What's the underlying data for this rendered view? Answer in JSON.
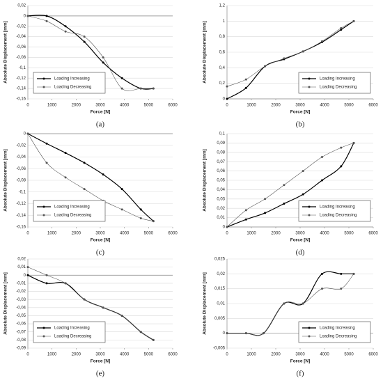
{
  "chart_data": [
    {
      "type": "line",
      "panel_label": "(a)",
      "x_label": "Force [N]",
      "y_label": "Absolute Displacement [mm]",
      "x": [
        0,
        780,
        1560,
        2340,
        3120,
        3900,
        4680,
        5200
      ],
      "series": [
        {
          "name": "Loading Increasing",
          "color": "#000000",
          "values": [
            0,
            0,
            -0.02,
            -0.05,
            -0.09,
            -0.12,
            -0.14,
            -0.14
          ]
        },
        {
          "name": "Loading Decreasing",
          "color": "#555555",
          "values": [
            0,
            -0.01,
            -0.03,
            -0.04,
            -0.08,
            -0.14,
            -0.14,
            -0.14
          ]
        }
      ],
      "xlim": [
        0,
        6000
      ],
      "xticks": [
        0,
        1000,
        2000,
        3000,
        4000,
        5000,
        6000
      ],
      "ylim": [
        -0.16,
        0.02
      ],
      "yticks": [
        {
          "value": 0.02,
          "label": "0,02"
        },
        0,
        {
          "value": -0.02,
          "label": "-0,02"
        },
        {
          "value": -0.04,
          "label": "-0,04"
        },
        {
          "value": -0.06,
          "label": "-0,06"
        },
        {
          "value": -0.08,
          "label": "-0,08"
        },
        {
          "value": -0.1,
          "label": "-0,1"
        },
        {
          "value": -0.12,
          "label": "-0,12"
        },
        {
          "value": -0.14,
          "label": "-0,14"
        },
        {
          "value": -0.16,
          "label": "-0,16"
        }
      ],
      "grid": true,
      "legend": "lower left"
    },
    {
      "type": "line",
      "panel_label": "(b)",
      "x_label": "Force [N]",
      "y_label": "Absolute Displacement [mm]",
      "x": [
        0,
        780,
        1560,
        2340,
        3120,
        3900,
        4680,
        5200
      ],
      "series": [
        {
          "name": "Loading Increasing",
          "color": "#000000",
          "values": [
            0,
            0.14,
            0.42,
            0.51,
            0.61,
            0.73,
            0.89,
            1.0
          ]
        },
        {
          "name": "Loading Decreasing",
          "color": "#555555",
          "values": [
            0.16,
            0.25,
            0.42,
            0.52,
            0.61,
            0.74,
            0.91,
            1.0
          ]
        }
      ],
      "xlim": [
        0,
        6000
      ],
      "xticks": [
        0,
        1000,
        2000,
        3000,
        4000,
        5000,
        6000
      ],
      "ylim": [
        0,
        1.2
      ],
      "yticks": [
        0,
        {
          "value": 0.2,
          "label": "0,2"
        },
        {
          "value": 0.4,
          "label": "0,4"
        },
        {
          "value": 0.6,
          "label": "0,6"
        },
        {
          "value": 0.8,
          "label": "0,8"
        },
        1,
        {
          "value": 1.2,
          "label": "1,2"
        }
      ],
      "grid": true,
      "legend": "lower right"
    },
    {
      "type": "line",
      "panel_label": "(c)",
      "x_label": "Force [N]",
      "y_label": "Absolute Displacement [mm]",
      "x": [
        0,
        780,
        1560,
        2340,
        3120,
        3900,
        4680,
        5200
      ],
      "series": [
        {
          "name": "Loading Increasing",
          "color": "#000000",
          "values": [
            0,
            -0.017,
            -0.033,
            -0.05,
            -0.07,
            -0.095,
            -0.13,
            -0.15
          ]
        },
        {
          "name": "Loading Decreasing",
          "color": "#555555",
          "values": [
            0,
            -0.05,
            -0.075,
            -0.095,
            -0.115,
            -0.13,
            -0.145,
            -0.15
          ]
        }
      ],
      "xlim": [
        0,
        6000
      ],
      "xticks": [
        0,
        1000,
        2000,
        3000,
        4000,
        5000,
        6000
      ],
      "ylim": [
        -0.16,
        0
      ],
      "yticks": [
        0,
        {
          "value": -0.02,
          "label": "-0,02"
        },
        {
          "value": -0.04,
          "label": "-0,04"
        },
        {
          "value": -0.06,
          "label": "-0,06"
        },
        {
          "value": -0.08,
          "label": "-0,08"
        },
        {
          "value": -0.1,
          "label": "-0,1"
        },
        {
          "value": -0.12,
          "label": "-0,12"
        },
        {
          "value": -0.14,
          "label": "-0,14"
        },
        {
          "value": -0.16,
          "label": "-0,16"
        }
      ],
      "grid": true,
      "legend": "lower left"
    },
    {
      "type": "line",
      "panel_label": "(d)",
      "x_label": "Force [N]",
      "y_label": "Absolute Displacement [mm]",
      "x": [
        0,
        780,
        1560,
        2340,
        3120,
        3900,
        4680,
        5200
      ],
      "series": [
        {
          "name": "Loading Increasing",
          "color": "#000000",
          "values": [
            0,
            0.008,
            0.015,
            0.025,
            0.035,
            0.05,
            0.065,
            0.09
          ]
        },
        {
          "name": "Loading Decreasing",
          "color": "#555555",
          "values": [
            0,
            0.018,
            0.03,
            0.045,
            0.06,
            0.075,
            0.085,
            0.09
          ]
        }
      ],
      "xlim": [
        0,
        6000
      ],
      "xticks": [
        0,
        1000,
        2000,
        3000,
        4000,
        5000,
        6000
      ],
      "ylim": [
        0,
        0.1
      ],
      "yticks": [
        0,
        {
          "value": 0.01,
          "label": "0,01"
        },
        {
          "value": 0.02,
          "label": "0,02"
        },
        {
          "value": 0.03,
          "label": "0,03"
        },
        {
          "value": 0.04,
          "label": "0,04"
        },
        {
          "value": 0.05,
          "label": "0,05"
        },
        {
          "value": 0.06,
          "label": "0,06"
        },
        {
          "value": 0.07,
          "label": "0,07"
        },
        {
          "value": 0.08,
          "label": "0,08"
        },
        {
          "value": 0.09,
          "label": "0,09"
        },
        {
          "value": 0.1,
          "label": "0,1"
        }
      ],
      "grid": true,
      "legend": "lower right"
    },
    {
      "type": "line",
      "panel_label": "(e)",
      "x_label": "Force [N]",
      "y_label": "Absolute Displacement [mm]",
      "x": [
        0,
        780,
        1560,
        2340,
        3120,
        3900,
        4680,
        5200
      ],
      "series": [
        {
          "name": "Loading Increasing",
          "color": "#000000",
          "values": [
            0,
            -0.01,
            -0.01,
            -0.03,
            -0.04,
            -0.05,
            -0.07,
            -0.08
          ]
        },
        {
          "name": "Loading Decreasing",
          "color": "#555555",
          "values": [
            0.01,
            0,
            -0.01,
            -0.03,
            -0.04,
            -0.05,
            -0.07,
            -0.08
          ]
        }
      ],
      "xlim": [
        0,
        6000
      ],
      "xticks": [
        0,
        1000,
        2000,
        3000,
        4000,
        5000,
        6000
      ],
      "ylim": [
        -0.09,
        0.02
      ],
      "yticks": [
        {
          "value": 0.02,
          "label": "0,02"
        },
        {
          "value": 0.01,
          "label": "0,01"
        },
        0,
        {
          "value": -0.01,
          "label": "-0,01"
        },
        {
          "value": -0.02,
          "label": "-0,02"
        },
        {
          "value": -0.03,
          "label": "-0,03"
        },
        {
          "value": -0.04,
          "label": "-0,04"
        },
        {
          "value": -0.05,
          "label": "-0,05"
        },
        {
          "value": -0.06,
          "label": "-0,06"
        },
        {
          "value": -0.07,
          "label": "-0,07"
        },
        {
          "value": -0.08,
          "label": "-0,08"
        },
        {
          "value": -0.09,
          "label": "-0,09"
        }
      ],
      "grid": true,
      "legend": "lower left"
    },
    {
      "type": "line",
      "panel_label": "(f)",
      "x_label": "Force [N]",
      "y_label": "Absolute Displacement [mm]",
      "x": [
        0,
        780,
        1500,
        2340,
        3120,
        3900,
        4680,
        5200
      ],
      "series": [
        {
          "name": "Loading Increasing",
          "color": "#000000",
          "values": [
            0,
            0,
            0,
            0.01,
            0.01,
            0.02,
            0.02,
            0.02
          ]
        },
        {
          "name": "Loading Decreasing",
          "color": "#555555",
          "values": [
            0,
            0,
            0,
            0.01,
            0.01,
            0.015,
            0.015,
            0.02
          ]
        }
      ],
      "xlim": [
        0,
        6000
      ],
      "xticks": [
        0,
        1000,
        2000,
        3000,
        4000,
        5000,
        6000
      ],
      "ylim": [
        -0.005,
        0.025
      ],
      "yticks": [
        {
          "value": -0.005,
          "label": "-0,005"
        },
        0,
        {
          "value": 0.005,
          "label": "0,005"
        },
        {
          "value": 0.01,
          "label": "0,01"
        },
        {
          "value": 0.015,
          "label": "0,015"
        },
        {
          "value": 0.02,
          "label": "0,02"
        },
        {
          "value": 0.025,
          "label": "0,025"
        }
      ],
      "grid": true,
      "legend": "lower right"
    }
  ]
}
